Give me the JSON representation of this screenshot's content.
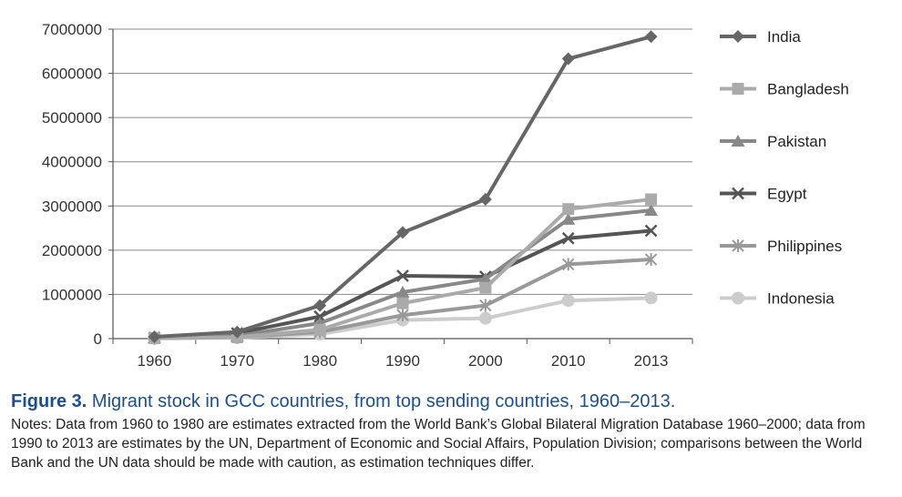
{
  "chart_data": {
    "type": "line",
    "categories": [
      "1960",
      "1970",
      "1980",
      "1990",
      "2000",
      "2010",
      "2013"
    ],
    "ylim": [
      0,
      7000000
    ],
    "yticks": [
      "0",
      "1000000",
      "2000000",
      "3000000",
      "4000000",
      "5000000",
      "6000000",
      "7000000"
    ],
    "grid": "horizontal",
    "legend_position": "right",
    "series": [
      {
        "name": "India",
        "color": "#666666",
        "marker": "diamond",
        "values": [
          40000,
          150000,
          750000,
          2400000,
          3150000,
          6330000,
          6830000
        ]
      },
      {
        "name": "Bangladesh",
        "color": "#aaaaaa",
        "marker": "square",
        "values": [
          10000,
          30000,
          200000,
          800000,
          1150000,
          2930000,
          3150000
        ]
      },
      {
        "name": "Pakistan",
        "color": "#888888",
        "marker": "triangle",
        "values": [
          20000,
          60000,
          350000,
          1050000,
          1350000,
          2700000,
          2900000
        ]
      },
      {
        "name": "Egypt",
        "color": "#555555",
        "marker": "x",
        "values": [
          20000,
          120000,
          500000,
          1420000,
          1400000,
          2270000,
          2440000
        ]
      },
      {
        "name": "Philippines",
        "color": "#999999",
        "marker": "star",
        "values": [
          10000,
          30000,
          150000,
          530000,
          750000,
          1680000,
          1790000
        ]
      },
      {
        "name": "Indonesia",
        "color": "#cccccc",
        "marker": "circle",
        "values": [
          5000,
          20000,
          100000,
          420000,
          460000,
          860000,
          920000
        ]
      }
    ]
  },
  "caption": {
    "figure_number": "Figure 3.",
    "title": "Migrant stock in GCC countries, from top sending countries, 1960–2013.",
    "notes": "Notes: Data from 1960 to 1980 are estimates extracted from the World Bank’s Global Bilateral Migration Database 1960–2000; data from 1990 to 2013 are estimates by the UN, Department of Economic and Social Affairs, Population Division; comparisons between the World Bank and the UN data should be made with caution, as estimation techniques differ."
  }
}
